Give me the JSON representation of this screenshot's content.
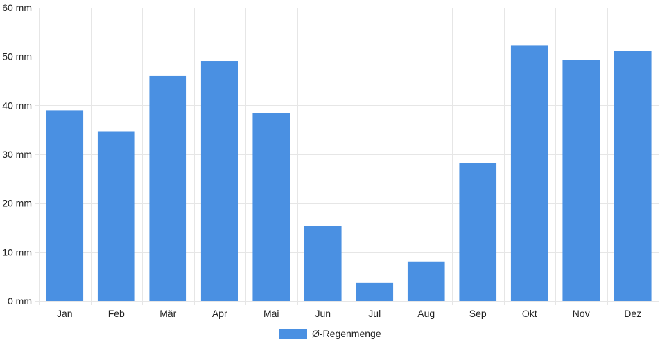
{
  "chart_data": {
    "type": "bar",
    "categories": [
      "Jan",
      "Feb",
      "Mär",
      "Apr",
      "Mai",
      "Jun",
      "Jul",
      "Aug",
      "Sep",
      "Okt",
      "Nov",
      "Dez"
    ],
    "series": [
      {
        "name": "Ø-Regenmenge",
        "values": [
          39.0,
          34.6,
          46.0,
          49.1,
          38.4,
          15.3,
          3.7,
          8.1,
          28.3,
          52.3,
          49.3,
          51.1
        ]
      }
    ],
    "y_ticks": [
      "0 mm",
      "10 mm",
      "20 mm",
      "30 mm",
      "40 mm",
      "50 mm",
      "60 mm"
    ],
    "ylim": [
      0,
      60
    ],
    "ystep": 10,
    "y_unit": "mm",
    "grid": true,
    "legend_position": "bottom",
    "bar_color": "#4a90e2",
    "grid_color": "#e6e6e6"
  }
}
